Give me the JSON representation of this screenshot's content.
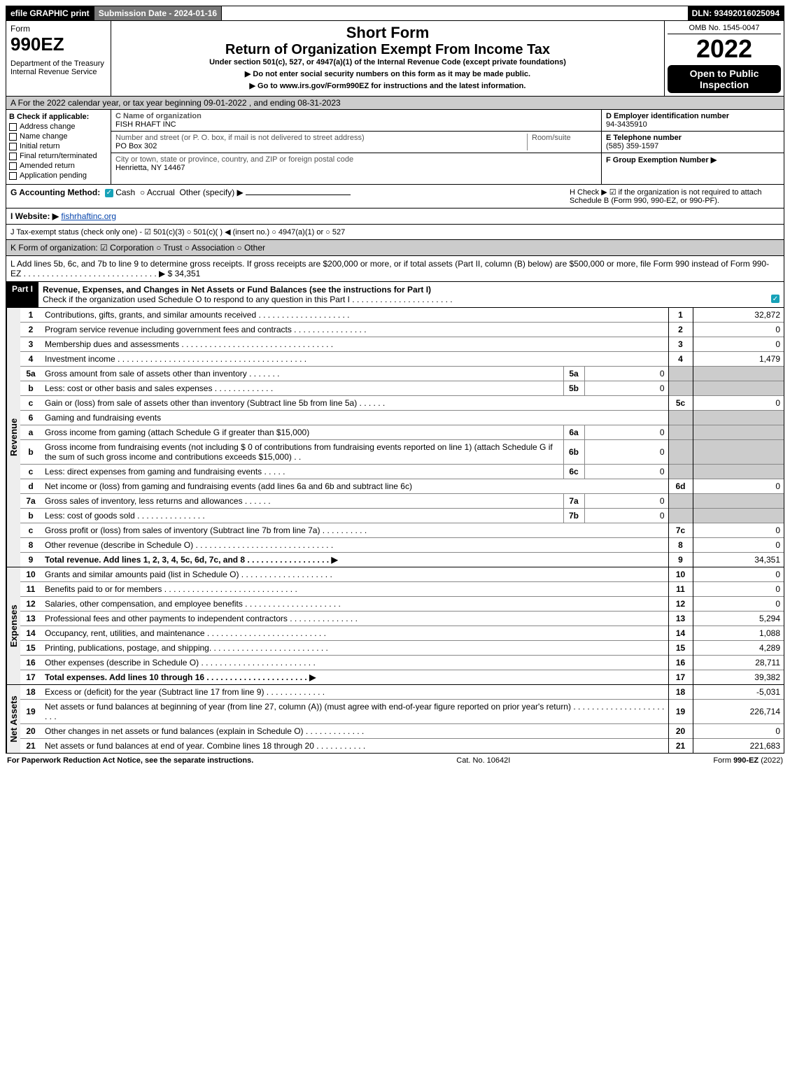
{
  "topbar": {
    "efile": "efile GRAPHIC print",
    "submission_date": "Submission Date - 2024-01-16",
    "dln": "DLN: 93492016025094"
  },
  "header": {
    "form_word": "Form",
    "form_number": "990EZ",
    "department": "Department of the Treasury",
    "irs": "Internal Revenue Service",
    "short_form": "Short Form",
    "return_title": "Return of Organization Exempt From Income Tax",
    "subtext": "Under section 501(c), 527, or 4947(a)(1) of the Internal Revenue Code (except private foundations)",
    "ssn_warning": "▶ Do not enter social security numbers on this form as it may be made public.",
    "goto": "▶ Go to www.irs.gov/Form990EZ for instructions and the latest information.",
    "omb": "OMB No. 1545-0047",
    "year": "2022",
    "open_to": "Open to Public Inspection"
  },
  "A": {
    "text": "A  For the 2022 calendar year, or tax year beginning 09-01-2022 , and ending 08-31-2023"
  },
  "B": {
    "title": "B  Check if applicable:",
    "items": [
      "Address change",
      "Name change",
      "Initial return",
      "Final return/terminated",
      "Amended return",
      "Application pending"
    ]
  },
  "C": {
    "name_label": "C Name of organization",
    "name": "FISH RHAFT INC",
    "street_label": "Number and street (or P. O. box, if mail is not delivered to street address)",
    "room_label": "Room/suite",
    "street": "PO Box 302",
    "city_label": "City or town, state or province, country, and ZIP or foreign postal code",
    "city": "Henrietta, NY  14467"
  },
  "D": {
    "label": "D Employer identification number",
    "value": "94-3435910"
  },
  "E": {
    "label": "E Telephone number",
    "value": "(585) 359-1597"
  },
  "F": {
    "label": "F Group Exemption Number  ▶",
    "value": ""
  },
  "G": {
    "label": "G Accounting Method:",
    "cash": "Cash",
    "accrual": "Accrual",
    "other": "Other (specify) ▶"
  },
  "H": {
    "text": "H  Check ▶ ☑ if the organization is not required to attach Schedule B (Form 990, 990-EZ, or 990-PF)."
  },
  "I": {
    "label": "I Website: ▶",
    "value": "fishrhaftinc.org"
  },
  "J": {
    "text": "J Tax-exempt status (check only one) - ☑ 501(c)(3)  ○ 501(c)(  ) ◀ (insert no.)  ○ 4947(a)(1) or  ○ 527"
  },
  "K": {
    "text": "K Form of organization:  ☑ Corporation  ○ Trust  ○ Association  ○ Other"
  },
  "L": {
    "text": "L Add lines 5b, 6c, and 7b to line 9 to determine gross receipts. If gross receipts are $200,000 or more, or if total assets (Part II, column (B) below) are $500,000 or more, file Form 990 instead of Form 990-EZ  . . . . . . . . . . . . . . . . . . . . . . . . . . . . .  ▶ $",
    "value": "34,351"
  },
  "part1": {
    "header": "Part I",
    "title": "Revenue, Expenses, and Changes in Net Assets or Fund Balances (see the instructions for Part I)",
    "check_text": "Check if the organization used Schedule O to respond to any question in this Part I . . . . . . . . . . . . . . . . . . . . . .",
    "sections": {
      "revenue_label": "Revenue",
      "expenses_label": "Expenses",
      "netassets_label": "Net Assets"
    },
    "rows": [
      {
        "n": "1",
        "desc": "Contributions, gifts, grants, and similar amounts received  . . . . . . . . . . . . . . . . . . . .",
        "end_n": "1",
        "end_v": "32,872"
      },
      {
        "n": "2",
        "desc": "Program service revenue including government fees and contracts  . . . . . . . . . . . . . . . .",
        "end_n": "2",
        "end_v": "0"
      },
      {
        "n": "3",
        "desc": "Membership dues and assessments . . . . . . . . . . . . . . . . . . . . . . . . . . . . . . . . .",
        "end_n": "3",
        "end_v": "0"
      },
      {
        "n": "4",
        "desc": "Investment income . . . . . . . . . . . . . . . . . . . . . . . . . . . . . . . . . . . . . . . . .",
        "end_n": "4",
        "end_v": "1,479"
      },
      {
        "n": "5a",
        "desc": "Gross amount from sale of assets other than inventory  . . . . . . .",
        "mid_n": "5a",
        "mid_v": "0",
        "grey_end": true
      },
      {
        "n": "b",
        "desc": "Less: cost or other basis and sales expenses  . . . . . . . . . . . . .",
        "mid_n": "5b",
        "mid_v": "0",
        "grey_end": true
      },
      {
        "n": "c",
        "desc": "Gain or (loss) from sale of assets other than inventory (Subtract line 5b from line 5a)  . . . . . .",
        "end_n": "5c",
        "end_v": "0"
      },
      {
        "n": "6",
        "desc": "Gaming and fundraising events",
        "grey_end": true
      },
      {
        "n": "a",
        "desc": "Gross income from gaming (attach Schedule G if greater than $15,000)",
        "mid_n": "6a",
        "mid_v": "0",
        "grey_end": true
      },
      {
        "n": "b",
        "desc": "Gross income from fundraising events (not including $ 0           of contributions from fundraising events reported on line 1) (attach Schedule G if the sum of such gross income and contributions exceeds $15,000)   . .",
        "mid_n": "6b",
        "mid_v": "0",
        "grey_end": true
      },
      {
        "n": "c",
        "desc": "Less: direct expenses from gaming and fundraising events  . . . . .",
        "mid_n": "6c",
        "mid_v": "0",
        "grey_end": true
      },
      {
        "n": "d",
        "desc": "Net income or (loss) from gaming and fundraising events (add lines 6a and 6b and subtract line 6c)",
        "end_n": "6d",
        "end_v": "0"
      },
      {
        "n": "7a",
        "desc": "Gross sales of inventory, less returns and allowances  . . . . . .",
        "mid_n": "7a",
        "mid_v": "0",
        "grey_end": true
      },
      {
        "n": "b",
        "desc": "Less: cost of goods sold     . . . . . . . . . . . . . . .",
        "mid_n": "7b",
        "mid_v": "0",
        "grey_end": true
      },
      {
        "n": "c",
        "desc": "Gross profit or (loss) from sales of inventory (Subtract line 7b from line 7a)  . . . . . . . . . .",
        "end_n": "7c",
        "end_v": "0"
      },
      {
        "n": "8",
        "desc": "Other revenue (describe in Schedule O) . . . . . . . . . . . . . . . . . . . . . . . . . . . . . .",
        "end_n": "8",
        "end_v": "0"
      },
      {
        "n": "9",
        "desc": "Total revenue. Add lines 1, 2, 3, 4, 5c, 6d, 7c, and 8  . . . . . . . . . . . . . . . . . .  ▶",
        "end_n": "9",
        "end_v": "34,351",
        "bold": true
      }
    ],
    "expense_rows": [
      {
        "n": "10",
        "desc": "Grants and similar amounts paid (list in Schedule O)  . . . . . . . . . . . . . . . . . . . .",
        "end_n": "10",
        "end_v": "0"
      },
      {
        "n": "11",
        "desc": "Benefits paid to or for members    . . . . . . . . . . . . . . . . . . . . . . . . . . . . .",
        "end_n": "11",
        "end_v": "0"
      },
      {
        "n": "12",
        "desc": "Salaries, other compensation, and employee benefits . . . . . . . . . . . . . . . . . . . . .",
        "end_n": "12",
        "end_v": "0"
      },
      {
        "n": "13",
        "desc": "Professional fees and other payments to independent contractors . . . . . . . . . . . . . . .",
        "end_n": "13",
        "end_v": "5,294"
      },
      {
        "n": "14",
        "desc": "Occupancy, rent, utilities, and maintenance . . . . . . . . . . . . . . . . . . . . . . . . . .",
        "end_n": "14",
        "end_v": "1,088"
      },
      {
        "n": "15",
        "desc": "Printing, publications, postage, and shipping. . . . . . . . . . . . . . . . . . . . . . . . . .",
        "end_n": "15",
        "end_v": "4,289"
      },
      {
        "n": "16",
        "desc": "Other expenses (describe in Schedule O)    . . . . . . . . . . . . . . . . . . . . . . . . .",
        "end_n": "16",
        "end_v": "28,711"
      },
      {
        "n": "17",
        "desc": "Total expenses. Add lines 10 through 16    . . . . . . . . . . . . . . . . . . . . . .  ▶",
        "end_n": "17",
        "end_v": "39,382",
        "bold": true
      }
    ],
    "netasset_rows": [
      {
        "n": "18",
        "desc": "Excess or (deficit) for the year (Subtract line 17 from line 9)      . . . . . . . . . . . . .",
        "end_n": "18",
        "end_v": "-5,031"
      },
      {
        "n": "19",
        "desc": "Net assets or fund balances at beginning of year (from line 27, column (A)) (must agree with end-of-year figure reported on prior year's return) . . . . . . . . . . . . . . . . . . . . . . .",
        "end_n": "19",
        "end_v": "226,714"
      },
      {
        "n": "20",
        "desc": "Other changes in net assets or fund balances (explain in Schedule O) . . . . . . . . . . . . .",
        "end_n": "20",
        "end_v": "0"
      },
      {
        "n": "21",
        "desc": "Net assets or fund balances at end of year. Combine lines 18 through 20 . . . . . . . . . . .",
        "end_n": "21",
        "end_v": "221,683"
      }
    ]
  },
  "footer": {
    "left": "For Paperwork Reduction Act Notice, see the separate instructions.",
    "center": "Cat. No. 10642I",
    "right": "Form 990-EZ (2022)"
  }
}
